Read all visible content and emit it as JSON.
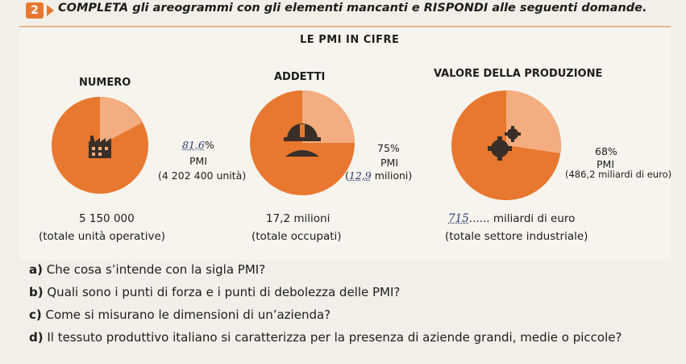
{
  "exercise": {
    "number": "2",
    "instruction": "COMPLETA gli areogrammi con gli elementi mancanti e RISPONDI alle seguenti domande."
  },
  "panel": {
    "title": "LE PMI IN CIFRE",
    "colors": {
      "orange": "#e8782f",
      "light": "#f3ad80",
      "bg": "#f7f4ee"
    }
  },
  "charts": [
    {
      "heading": "NUMERO",
      "icon": "factory-icon",
      "share_text_hand": "81,6",
      "share_suffix": "%",
      "share_label": "PMI",
      "detail": "(4 202 400 unità)",
      "total_value": "5 150 000",
      "total_label": "(totale unità operative)"
    },
    {
      "heading": "ADDETTI",
      "icon": "worker-helmet-icon",
      "share_text": "75%",
      "share_label": "PMI",
      "detail_hand": "12,9",
      "detail_suffix": "milioni)",
      "total_value": "17,2 milioni",
      "total_label": "(totale occupati)"
    },
    {
      "heading": "VALORE DELLA PRODUZIONE",
      "icon": "gears-icon",
      "share_text": "68%",
      "share_label": "PMI",
      "detail": "(486,2 miliardi di euro)",
      "total_hand": "715",
      "total_suffix": "miliardi di euro",
      "total_label": "(totale settore industriale)"
    }
  ],
  "questions": [
    {
      "letter": "a)",
      "text": "Che cosa s’intende con la sigla PMI?"
    },
    {
      "letter": "b)",
      "text": "Quali sono i punti di forza e i punti di debolezza delle PMI?"
    },
    {
      "letter": "c)",
      "text": "Come si misurano le dimensioni di un’azienda?"
    },
    {
      "letter": "d)",
      "text": "Il tessuto produttivo italiano si caratterizza per la presenza di aziende grandi, medie o piccole?"
    }
  ]
}
